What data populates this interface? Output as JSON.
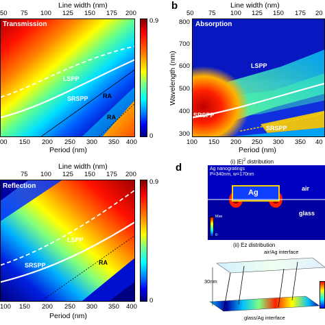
{
  "panels": {
    "a": {
      "title": "Transmission",
      "top_axis_label": "Line width (nm)",
      "top_ticks": [
        "50",
        "75",
        "100",
        "125",
        "150",
        "175",
        "200"
      ],
      "bottom_axis_label": "Period (nm)",
      "bottom_ticks": [
        "00",
        "150",
        "200",
        "250",
        "300",
        "350",
        "400"
      ],
      "colorbar_max": "0.9",
      "colorbar_min": "0",
      "labels": {
        "lspp": "LSPP",
        "srspp": "SRSPP",
        "ra1": "RA",
        "ra2": "RA"
      }
    },
    "b": {
      "letter": "b",
      "title": "Absorption",
      "top_axis_label": "Line width (nm)",
      "top_ticks": [
        "50",
        "75",
        "100",
        "125",
        "150",
        "175",
        "20"
      ],
      "left_axis_label": "Wavelength (nm)",
      "left_ticks": [
        "800",
        "700",
        "600",
        "500",
        "400",
        "300"
      ],
      "bottom_axis_label": "Period (nm)",
      "bottom_ticks": [
        "100",
        "150",
        "200",
        "250",
        "300",
        "350",
        "40"
      ],
      "labels": {
        "lspp": "LSPP",
        "srspp1": "SRSPP",
        "srspp2": "SRSPP"
      }
    },
    "c": {
      "title": "Reflection",
      "top_axis_label": "Line width (nm)",
      "top_ticks": [
        "75",
        "100",
        "125",
        "150",
        "175",
        "200"
      ],
      "bottom_axis_label": "Period (nm)",
      "bottom_ticks": [
        "100",
        "150",
        "200",
        "250",
        "300",
        "350",
        "400"
      ],
      "colorbar_max": "0.9",
      "colorbar_min": "0",
      "labels": {
        "lspp": "LSPP",
        "srspp": "SRSPP",
        "ra": "RA"
      }
    },
    "d": {
      "letter": "d",
      "subtitle_i_prefix": "(i) |E|",
      "subtitle_i_sup": "2",
      "subtitle_i_suffix": " distribution",
      "material_label": "Ag nanogratings",
      "params_label": "P=340nm, w=170nm",
      "ag_label": "Ag",
      "air_label": "air",
      "glass_label": "glass",
      "cbar_max": "Max",
      "cbar_min": "0",
      "subtitle_ii": "(ii) Ez distribution",
      "air_ag_label": "air/Ag interface",
      "glass_ag_label": "glass/Ag interface",
      "thickness_label": "30nm"
    }
  },
  "colors": {
    "dark_red": "#7f0000",
    "red": "#ff0000",
    "yellow": "#ffff00",
    "cyan": "#00ffff",
    "blue": "#0000ff",
    "dark_blue": "#00007f"
  }
}
